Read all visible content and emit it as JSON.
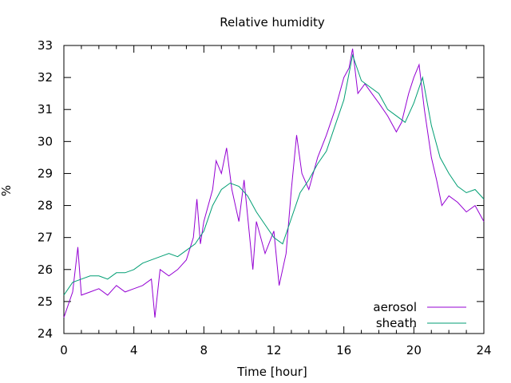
{
  "chart_data": {
    "type": "line",
    "title": "Relative humidity",
    "xlabel": "Time [hour]",
    "ylabel": "%",
    "xlim": [
      0,
      24
    ],
    "ylim": [
      24,
      33
    ],
    "x_ticks": [
      "0",
      "4",
      "8",
      "12",
      "16",
      "20",
      "24"
    ],
    "y_ticks": [
      "24",
      "25",
      "26",
      "27",
      "28",
      "29",
      "30",
      "31",
      "32",
      "33"
    ],
    "grid": false,
    "legend_position": "bottom-right",
    "series": [
      {
        "name": "aerosol",
        "color": "#9400d3",
        "points": [
          [
            0,
            24.5
          ],
          [
            0.5,
            25.3
          ],
          [
            0.8,
            26.7
          ],
          [
            1,
            25.2
          ],
          [
            1.5,
            25.3
          ],
          [
            2,
            25.4
          ],
          [
            2.5,
            25.2
          ],
          [
            3,
            25.5
          ],
          [
            3.5,
            25.3
          ],
          [
            4,
            25.4
          ],
          [
            4.5,
            25.5
          ],
          [
            5,
            25.7
          ],
          [
            5.2,
            24.5
          ],
          [
            5.5,
            26.0
          ],
          [
            6,
            25.8
          ],
          [
            6.5,
            26.0
          ],
          [
            7,
            26.3
          ],
          [
            7.4,
            27.0
          ],
          [
            7.6,
            28.2
          ],
          [
            7.8,
            26.8
          ],
          [
            8,
            27.5
          ],
          [
            8.5,
            28.5
          ],
          [
            8.7,
            29.4
          ],
          [
            9,
            29.0
          ],
          [
            9.3,
            29.8
          ],
          [
            9.6,
            28.5
          ],
          [
            10,
            27.5
          ],
          [
            10.3,
            28.8
          ],
          [
            10.8,
            26.0
          ],
          [
            11,
            27.5
          ],
          [
            11.5,
            26.5
          ],
          [
            12,
            27.2
          ],
          [
            12.3,
            25.5
          ],
          [
            12.7,
            26.5
          ],
          [
            13,
            28.5
          ],
          [
            13.3,
            30.2
          ],
          [
            13.6,
            29.0
          ],
          [
            14,
            28.5
          ],
          [
            14.5,
            29.5
          ],
          [
            15,
            30.2
          ],
          [
            15.5,
            31.0
          ],
          [
            16,
            32.0
          ],
          [
            16.3,
            32.3
          ],
          [
            16.5,
            32.9
          ],
          [
            16.8,
            31.5
          ],
          [
            17.2,
            31.8
          ],
          [
            17.6,
            31.5
          ],
          [
            18,
            31.2
          ],
          [
            18.5,
            30.8
          ],
          [
            19,
            30.3
          ],
          [
            19.3,
            30.6
          ],
          [
            19.7,
            31.5
          ],
          [
            20,
            32.0
          ],
          [
            20.3,
            32.4
          ],
          [
            20.6,
            31.0
          ],
          [
            21,
            29.5
          ],
          [
            21.3,
            28.8
          ],
          [
            21.6,
            28.0
          ],
          [
            22,
            28.3
          ],
          [
            22.5,
            28.1
          ],
          [
            23,
            27.8
          ],
          [
            23.5,
            28.0
          ],
          [
            24,
            27.5
          ]
        ]
      },
      {
        "name": "sheath",
        "color": "#009e73",
        "points": [
          [
            0,
            25.2
          ],
          [
            0.5,
            25.6
          ],
          [
            1,
            25.7
          ],
          [
            1.5,
            25.8
          ],
          [
            2,
            25.8
          ],
          [
            2.5,
            25.7
          ],
          [
            3,
            25.9
          ],
          [
            3.5,
            25.9
          ],
          [
            4,
            26.0
          ],
          [
            4.5,
            26.2
          ],
          [
            5,
            26.3
          ],
          [
            5.5,
            26.4
          ],
          [
            6,
            26.5
          ],
          [
            6.5,
            26.4
          ],
          [
            7,
            26.6
          ],
          [
            7.5,
            26.8
          ],
          [
            8,
            27.2
          ],
          [
            8.5,
            28.0
          ],
          [
            9,
            28.5
          ],
          [
            9.5,
            28.7
          ],
          [
            10,
            28.6
          ],
          [
            10.5,
            28.3
          ],
          [
            11,
            27.8
          ],
          [
            11.5,
            27.4
          ],
          [
            12,
            27.0
          ],
          [
            12.5,
            26.8
          ],
          [
            13,
            27.6
          ],
          [
            13.5,
            28.4
          ],
          [
            14,
            28.8
          ],
          [
            14.5,
            29.3
          ],
          [
            15,
            29.7
          ],
          [
            15.5,
            30.5
          ],
          [
            16,
            31.3
          ],
          [
            16.5,
            32.7
          ],
          [
            17,
            31.9
          ],
          [
            17.5,
            31.7
          ],
          [
            18,
            31.5
          ],
          [
            18.5,
            31.0
          ],
          [
            19,
            30.8
          ],
          [
            19.5,
            30.6
          ],
          [
            20,
            31.2
          ],
          [
            20.5,
            32.0
          ],
          [
            21,
            30.5
          ],
          [
            21.5,
            29.5
          ],
          [
            22,
            29.0
          ],
          [
            22.5,
            28.6
          ],
          [
            23,
            28.4
          ],
          [
            23.5,
            28.5
          ],
          [
            24,
            28.2
          ]
        ]
      }
    ]
  }
}
